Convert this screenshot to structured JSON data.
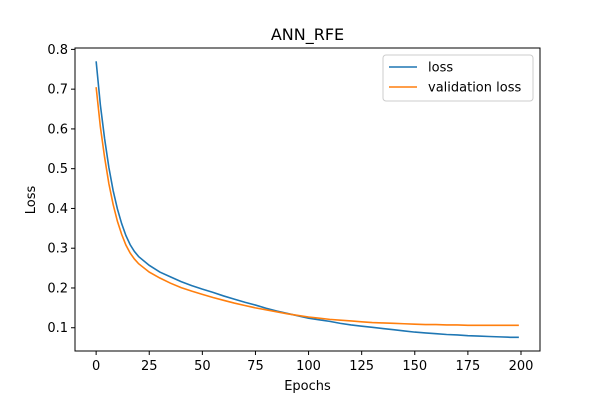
{
  "chart_data": {
    "type": "line",
    "title": "ANN_RFE",
    "xlabel": "Epochs",
    "ylabel": "Loss",
    "xlim": [
      -9.95,
      208.95
    ],
    "ylim": [
      0.0415,
      0.8035
    ],
    "xticks": [
      0,
      25,
      50,
      75,
      100,
      125,
      150,
      175,
      200
    ],
    "yticks": [
      0.1,
      0.2,
      0.3,
      0.4,
      0.5,
      0.6,
      0.7,
      0.8
    ],
    "ytick_labels": [
      "0.1",
      "0.2",
      "0.3",
      "0.4",
      "0.5",
      "0.6",
      "0.7",
      "0.8"
    ],
    "grid": false,
    "legend_position": "top-right",
    "series": [
      {
        "name": "loss",
        "color": "#1f77b4",
        "points": [
          [
            0,
            0.77
          ],
          [
            2,
            0.66
          ],
          [
            4,
            0.575
          ],
          [
            6,
            0.503
          ],
          [
            8,
            0.445
          ],
          [
            10,
            0.399
          ],
          [
            12,
            0.362
          ],
          [
            14,
            0.332
          ],
          [
            16,
            0.309
          ],
          [
            18,
            0.292
          ],
          [
            20,
            0.279
          ],
          [
            25,
            0.257
          ],
          [
            30,
            0.24
          ],
          [
            35,
            0.228
          ],
          [
            40,
            0.216
          ],
          [
            45,
            0.206
          ],
          [
            50,
            0.197
          ],
          [
            55,
            0.189
          ],
          [
            60,
            0.18
          ],
          [
            65,
            0.172
          ],
          [
            70,
            0.164
          ],
          [
            75,
            0.157
          ],
          [
            80,
            0.149
          ],
          [
            85,
            0.142
          ],
          [
            90,
            0.136
          ],
          [
            95,
            0.13
          ],
          [
            100,
            0.124
          ],
          [
            105,
            0.12
          ],
          [
            110,
            0.116
          ],
          [
            115,
            0.111
          ],
          [
            120,
            0.107
          ],
          [
            125,
            0.104
          ],
          [
            130,
            0.101
          ],
          [
            135,
            0.098
          ],
          [
            140,
            0.095
          ],
          [
            145,
            0.092
          ],
          [
            150,
            0.089
          ],
          [
            155,
            0.087
          ],
          [
            160,
            0.085
          ],
          [
            165,
            0.083
          ],
          [
            170,
            0.082
          ],
          [
            175,
            0.08
          ],
          [
            180,
            0.079
          ],
          [
            185,
            0.078
          ],
          [
            190,
            0.077
          ],
          [
            195,
            0.076
          ],
          [
            199,
            0.076
          ]
        ]
      },
      {
        "name": "validation loss",
        "color": "#ff7f0e",
        "points": [
          [
            0,
            0.705
          ],
          [
            2,
            0.605
          ],
          [
            4,
            0.528
          ],
          [
            6,
            0.462
          ],
          [
            8,
            0.41
          ],
          [
            10,
            0.368
          ],
          [
            12,
            0.335
          ],
          [
            14,
            0.308
          ],
          [
            16,
            0.288
          ],
          [
            18,
            0.273
          ],
          [
            20,
            0.261
          ],
          [
            25,
            0.24
          ],
          [
            30,
            0.225
          ],
          [
            35,
            0.212
          ],
          [
            40,
            0.201
          ],
          [
            45,
            0.192
          ],
          [
            50,
            0.184
          ],
          [
            55,
            0.176
          ],
          [
            60,
            0.169
          ],
          [
            65,
            0.162
          ],
          [
            70,
            0.156
          ],
          [
            75,
            0.15
          ],
          [
            80,
            0.145
          ],
          [
            85,
            0.14
          ],
          [
            90,
            0.135
          ],
          [
            95,
            0.131
          ],
          [
            100,
            0.127
          ],
          [
            105,
            0.124
          ],
          [
            110,
            0.121
          ],
          [
            115,
            0.119
          ],
          [
            120,
            0.117
          ],
          [
            125,
            0.115
          ],
          [
            130,
            0.113
          ],
          [
            135,
            0.112
          ],
          [
            140,
            0.111
          ],
          [
            145,
            0.11
          ],
          [
            150,
            0.109
          ],
          [
            155,
            0.108
          ],
          [
            160,
            0.108
          ],
          [
            165,
            0.107
          ],
          [
            170,
            0.107
          ],
          [
            175,
            0.106
          ],
          [
            180,
            0.106
          ],
          [
            185,
            0.106
          ],
          [
            190,
            0.106
          ],
          [
            195,
            0.106
          ],
          [
            199,
            0.106
          ]
        ]
      }
    ]
  }
}
